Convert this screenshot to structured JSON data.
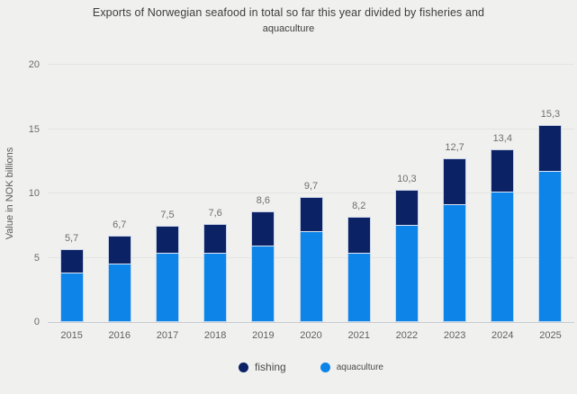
{
  "title": {
    "line1": "Exports of Norwegian seafood in total so far this year divided by fisheries and",
    "line2": "aquaculture"
  },
  "chart_data": {
    "type": "bar",
    "stacked": true,
    "title": "Exports of Norwegian seafood in total so far this year divided by fisheries and aquaculture",
    "xlabel": "",
    "ylabel": "Value in NOK billions",
    "categories": [
      "2015",
      "2016",
      "2017",
      "2018",
      "2019",
      "2020",
      "2021",
      "2022",
      "2023",
      "2024",
      "2025"
    ],
    "series": [
      {
        "name": "fishing",
        "color": "#0b2265",
        "values": [
          1.9,
          2.2,
          2.2,
          2.3,
          2.7,
          2.7,
          2.9,
          2.8,
          3.6,
          3.3,
          3.6
        ]
      },
      {
        "name": "aquaculture",
        "color": "#0d84e8",
        "values": [
          3.8,
          4.5,
          5.3,
          5.3,
          5.9,
          7.0,
          5.3,
          7.5,
          9.1,
          10.1,
          11.7
        ]
      }
    ],
    "totals": [
      5.7,
      6.7,
      7.5,
      7.6,
      8.6,
      9.7,
      8.2,
      10.3,
      12.7,
      13.4,
      15.3
    ],
    "total_labels": [
      "5,7",
      "6,7",
      "7,5",
      "7,6",
      "8,6",
      "9,7",
      "8,2",
      "10,3",
      "12,7",
      "13,4",
      "15,3"
    ],
    "ylim": [
      0,
      20
    ],
    "yticks": [
      0,
      5,
      10,
      15,
      20
    ],
    "grid": "horizontal",
    "legend_position": "bottom",
    "decimal_separator": ","
  },
  "colors": {
    "background": "#f0f1ef",
    "grid": "#e3e5e2",
    "axis": "#c7ccd3",
    "title_text": "#3d3d3d",
    "muted_text": "#6e6e6e",
    "fishing": "#0b2265",
    "aquaculture": "#0d84e8"
  }
}
